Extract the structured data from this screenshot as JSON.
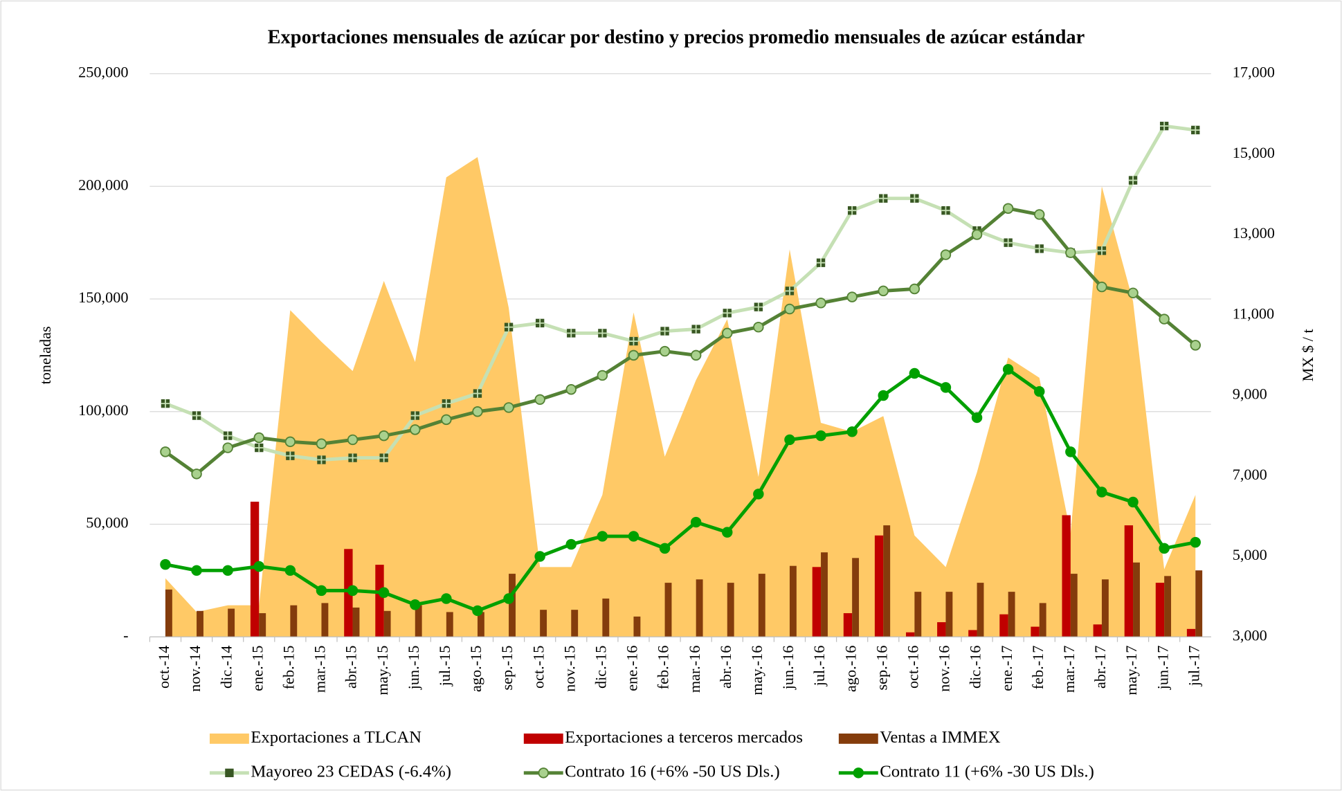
{
  "chart_data": {
    "type": "combo",
    "title": "Exportaciones mensuales de azúcar por destino y precios promedio mensuales de azúcar estándar",
    "ylabel": "toneladas",
    "y2label": "MX $ / t",
    "categories": [
      "oct.-14",
      "nov.-14",
      "dic.-14",
      "ene.-15",
      "feb.-15",
      "mar.-15",
      "abr.-15",
      "may.-15",
      "jun.-15",
      "jul.-15",
      "ago.-15",
      "sep.-15",
      "oct.-15",
      "nov.-15",
      "dic.-15",
      "ene.-16",
      "feb.-16",
      "mar.-16",
      "abr.-16",
      "may.-16",
      "jun.-16",
      "jul.-16",
      "ago.-16",
      "sep.-16",
      "oct.-16",
      "nov.-16",
      "dic.-16",
      "ene.-17",
      "feb.-17",
      "mar.-17",
      "abr.-17",
      "may.-17",
      "jun.-17",
      "jul.-17"
    ],
    "ylim": [
      0,
      250000
    ],
    "yticks": [
      {
        "value": 0,
        "label": "-"
      },
      {
        "value": 50000,
        "label": "50,000"
      },
      {
        "value": 100000,
        "label": "100,000"
      },
      {
        "value": 150000,
        "label": "150,000"
      },
      {
        "value": 200000,
        "label": "200,000"
      },
      {
        "value": 250000,
        "label": "250,000"
      }
    ],
    "y2lim": [
      3000,
      17000
    ],
    "y2ticks": [
      {
        "value": 3000,
        "label": "3,000"
      },
      {
        "value": 5000,
        "label": "5,000"
      },
      {
        "value": 7000,
        "label": "7,000"
      },
      {
        "value": 9000,
        "label": "9,000"
      },
      {
        "value": 11000,
        "label": "11,000"
      },
      {
        "value": 13000,
        "label": "13,000"
      },
      {
        "value": 15000,
        "label": "15,000"
      },
      {
        "value": 17000,
        "label": "17,000"
      }
    ],
    "grid": true,
    "series": [
      {
        "name": "Exportaciones a TLCAN",
        "type": "area",
        "color": "#ffc966",
        "values": [
          26000,
          11000,
          14000,
          14000,
          145000,
          131000,
          118000,
          158000,
          122000,
          204000,
          213000,
          146000,
          31000,
          31000,
          63000,
          144000,
          80000,
          114000,
          141000,
          71000,
          172000,
          95000,
          91000,
          98000,
          45000,
          31000,
          73000,
          124000,
          115000,
          46000,
          200000,
          149000,
          30000,
          63000
        ]
      },
      {
        "name": "Exportaciones a terceros mercados",
        "type": "bar",
        "color": "#c00000",
        "values": [
          0,
          0,
          0,
          60000,
          0,
          0,
          39000,
          32000,
          0,
          0,
          0,
          0,
          0,
          0,
          0,
          0,
          0,
          0,
          0,
          0,
          0,
          31000,
          10500,
          45000,
          2000,
          6500,
          3000,
          10000,
          4500,
          54000,
          5500,
          49500,
          24000,
          3500
        ]
      },
      {
        "name": "Ventas a IMMEX",
        "type": "bar",
        "color": "#843c0c",
        "values": [
          21000,
          11500,
          12500,
          10500,
          14000,
          15000,
          13000,
          11500,
          14000,
          11000,
          11000,
          28000,
          12000,
          12000,
          17000,
          9000,
          24000,
          25500,
          24000,
          28000,
          31500,
          37500,
          35000,
          49500,
          20000,
          20000,
          24000,
          20000,
          15000,
          28000,
          25500,
          33000,
          27000,
          29500
        ]
      },
      {
        "name": "Mayoreo 23 CEDAS (-6.4%)",
        "type": "line",
        "axis": "y2",
        "color": "#c5e0b4",
        "marker_color": "#385723",
        "marker": "square",
        "values": [
          8800,
          8500,
          8000,
          7700,
          7500,
          7400,
          7450,
          7450,
          8500,
          8800,
          9050,
          10700,
          10800,
          10550,
          10550,
          10350,
          10600,
          10650,
          11050,
          11200,
          11600,
          12300,
          13600,
          13900,
          13900,
          13600,
          13100,
          12800,
          12650,
          12550,
          12600,
          14350,
          15700,
          15600
        ]
      },
      {
        "name": "Contrato 16 (+6% -50 US Dls.)",
        "type": "line",
        "axis": "y2",
        "color": "#548235",
        "marker_color": "#a9d18e",
        "marker": "circle",
        "values": [
          7600,
          7050,
          7700,
          7950,
          7850,
          7800,
          7900,
          8000,
          8150,
          8400,
          8600,
          8700,
          8900,
          9150,
          9500,
          10000,
          10100,
          10000,
          10550,
          10700,
          11150,
          11300,
          11450,
          11600,
          11650,
          12500,
          13000,
          13650,
          13500,
          12550,
          11700,
          11550,
          10900,
          10250
        ]
      },
      {
        "name": "Contrato 11 (+6% -30 US Dls.)",
        "type": "line",
        "axis": "y2",
        "color": "#00a000",
        "marker_color": "#00a000",
        "marker": "circle",
        "values": [
          4800,
          4650,
          4650,
          4750,
          4650,
          4150,
          4150,
          4100,
          3800,
          3950,
          3650,
          3950,
          5000,
          5300,
          5500,
          5500,
          5200,
          5850,
          5600,
          6550,
          7900,
          8000,
          8100,
          9000,
          9550,
          9200,
          8450,
          9650,
          9100,
          7600,
          6600,
          6350,
          5200,
          5350
        ]
      }
    ]
  }
}
